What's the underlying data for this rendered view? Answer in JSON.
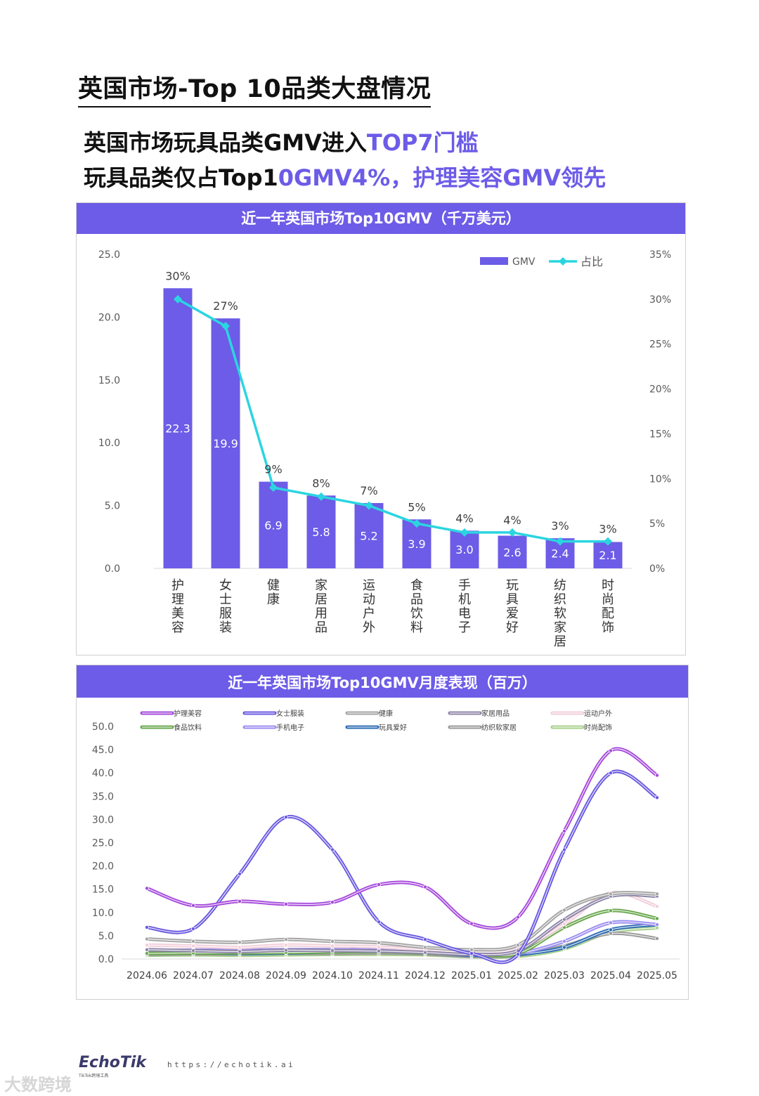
{
  "page": {
    "title": "英国市场-Top 10品类大盘情况",
    "headline1_a": "英国市场玩具品类GMV进入",
    "headline1_b": "TOP7门槛",
    "headline2_a": "玩具品类仅占Top1",
    "headline2_b": "0GMV4%，护理美容GMV领先"
  },
  "chart_data": [
    {
      "type": "bar",
      "title": "近一年英国市场Top10GMV（千万美元）",
      "categories": [
        "护理美容",
        "女士服装",
        "健康",
        "家居用品",
        "运动户外",
        "食品饮料",
        "手机电子",
        "玩具爱好",
        "纺织软家居",
        "时尚配饰"
      ],
      "series": [
        {
          "name": "GMV",
          "type": "bar",
          "axis": "left",
          "values": [
            22.3,
            19.9,
            6.9,
            5.8,
            5.2,
            3.9,
            3.0,
            2.6,
            2.4,
            2.1
          ],
          "labels": [
            "22.3",
            "19.9",
            "6.9",
            "5.8",
            "5.2",
            "3.9",
            "3.0",
            "2.6",
            "2.4",
            "2.1"
          ]
        },
        {
          "name": "占比",
          "type": "line",
          "axis": "right",
          "values": [
            30,
            27,
            9,
            8,
            7,
            5,
            4,
            4,
            3,
            3
          ],
          "labels": [
            "30%",
            "27%",
            "9%",
            "8%",
            "7%",
            "5%",
            "4%",
            "4%",
            "3%",
            "3%"
          ]
        }
      ],
      "y_left": {
        "min": 0,
        "max": 25,
        "ticks": [
          "0.0",
          "5.0",
          "10.0",
          "15.0",
          "20.0",
          "25.0"
        ]
      },
      "y_right": {
        "min": 0,
        "max": 35,
        "ticks": [
          "0%",
          "5%",
          "10%",
          "15%",
          "20%",
          "25%",
          "30%",
          "35%"
        ]
      },
      "legend_position": "top-right",
      "colors": {
        "bar": "#6c5ce7",
        "line": "#2bd5e0"
      }
    },
    {
      "type": "line",
      "title": "近一年英国市场Top10GMV月度表现（百万）",
      "x": [
        "2024.06",
        "2024.07",
        "2024.08",
        "2024.09",
        "2024.10",
        "2024.11",
        "2024.12",
        "2025.01",
        "2025.02",
        "2025.03",
        "2025.04",
        "2025.05"
      ],
      "y_ticks": [
        "0.0",
        "5.0",
        "10.0",
        "15.0",
        "20.0",
        "25.0",
        "30.0",
        "35.0",
        "40.0",
        "45.0",
        "50.0"
      ],
      "ylim": [
        0,
        50
      ],
      "legend_position": "top",
      "series": [
        {
          "name": "护理美容",
          "color": "#a64bdc",
          "values": [
            15.2,
            11.5,
            12.4,
            11.8,
            12.2,
            16.0,
            15.5,
            7.6,
            9.0,
            27.5,
            44.8,
            39.5
          ]
        },
        {
          "name": "女士服装",
          "color": "#6a5ae0",
          "values": [
            6.8,
            6.5,
            18.3,
            30.5,
            23.5,
            8.0,
            4.2,
            1.2,
            1.0,
            23.5,
            40.0,
            34.7
          ]
        },
        {
          "name": "健康",
          "color": "#a5a5a5",
          "values": [
            4.3,
            3.8,
            3.6,
            4.2,
            3.8,
            3.5,
            2.5,
            2.0,
            3.0,
            10.5,
            14.0,
            14.0
          ]
        },
        {
          "name": "家居用品",
          "color": "#8e86a8",
          "values": [
            2.0,
            1.8,
            1.6,
            1.9,
            1.8,
            1.7,
            1.4,
            1.0,
            1.8,
            8.5,
            13.5,
            13.5
          ]
        },
        {
          "name": "运动户外",
          "color": "#f2cfda",
          "values": [
            3.0,
            2.8,
            2.5,
            3.0,
            2.8,
            2.6,
            2.0,
            1.5,
            2.2,
            7.5,
            14.2,
            11.3
          ]
        },
        {
          "name": "食品饮料",
          "color": "#6aa84f",
          "values": [
            1.2,
            1.3,
            1.3,
            1.4,
            1.5,
            1.6,
            1.3,
            1.0,
            1.2,
            6.8,
            10.4,
            8.7
          ]
        },
        {
          "name": "手机电子",
          "color": "#9c8ef0",
          "values": [
            1.8,
            1.9,
            1.9,
            2.0,
            2.0,
            1.9,
            1.6,
            1.0,
            1.2,
            3.8,
            7.8,
            7.4
          ]
        },
        {
          "name": "玩具爱好",
          "color": "#2e6db4",
          "values": [
            1.5,
            1.4,
            1.2,
            1.3,
            1.6,
            2.5,
            1.5,
            0.8,
            1.0,
            2.5,
            6.3,
            7.4
          ]
        },
        {
          "name": "纺织软家居",
          "color": "#9a9a9a",
          "values": [
            1.0,
            1.1,
            1.1,
            1.2,
            1.2,
            1.3,
            1.1,
            0.6,
            0.8,
            2.8,
            5.5,
            4.4
          ]
        },
        {
          "name": "时尚配饰",
          "color": "#a8d08d",
          "values": [
            0.8,
            0.9,
            0.8,
            0.9,
            1.0,
            1.0,
            0.9,
            0.5,
            0.6,
            2.2,
            5.8,
            6.7
          ]
        }
      ]
    }
  ],
  "footer": {
    "brand": "EchoTik",
    "brand_tag": "TikTok跨境工具",
    "url": "https://echotik.ai",
    "watermark": "大数跨境"
  }
}
